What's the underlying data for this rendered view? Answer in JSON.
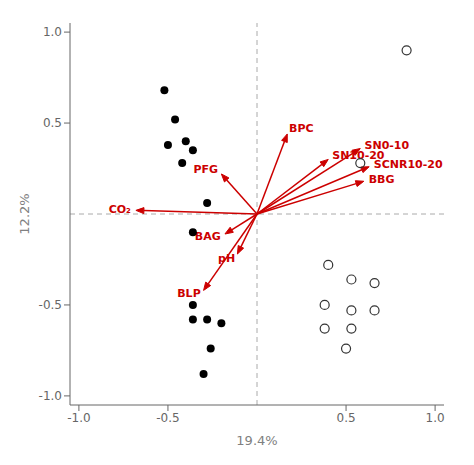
{
  "chart_data": {
    "type": "scatter",
    "xlabel": "19.4%",
    "ylabel": "12.2%",
    "xlim": [
      -1.05,
      1.05
    ],
    "ylim": [
      -1.05,
      1.05
    ],
    "xticks": [
      {
        "value": -1.0,
        "label": "-1.0"
      },
      -0.5,
      0.5,
      {
        "value": 1.0,
        "label": "1.0"
      }
    ],
    "yticks": [
      {
        "value": -1.0,
        "label": "-1.0"
      },
      -0.5,
      0.5,
      {
        "value": 1.0,
        "label": "1.0"
      }
    ],
    "series": [
      {
        "color": "black",
        "marker": "circle",
        "values": [
          [
            -0.52,
            0.68
          ],
          [
            -0.46,
            0.52
          ],
          [
            -0.4,
            0.4
          ],
          [
            -0.5,
            0.38
          ],
          [
            -0.36,
            0.35
          ],
          [
            -0.42,
            0.28
          ],
          [
            -0.28,
            0.06
          ],
          [
            -0.36,
            -0.1
          ],
          [
            -0.36,
            -0.5
          ],
          [
            -0.36,
            -0.58
          ],
          [
            -0.28,
            -0.58
          ],
          [
            -0.2,
            -0.6
          ],
          [
            -0.26,
            -0.74
          ],
          [
            -0.3,
            -0.88
          ]
        ]
      },
      {
        "color": "#333333",
        "marker": "open circle",
        "values": [
          [
            0.84,
            0.9
          ],
          [
            0.58,
            0.28
          ],
          [
            0.4,
            -0.28
          ],
          [
            0.53,
            -0.36
          ],
          [
            0.66,
            -0.38
          ],
          [
            0.38,
            -0.5
          ],
          [
            0.53,
            -0.53
          ],
          [
            0.66,
            -0.53
          ],
          [
            0.38,
            -0.63
          ],
          [
            0.53,
            -0.63
          ],
          [
            0.5,
            -0.74
          ]
        ]
      }
    ],
    "arrows": {
      "color": "#cc0000",
      "items": [
        {
          "label": "BPC",
          "x": 0.17,
          "y": 0.44
        },
        {
          "label": "SN10-20",
          "x": 0.4,
          "y": 0.3
        },
        {
          "label": "SN0-10",
          "x": 0.58,
          "y": 0.36
        },
        {
          "label": "SCNR10-20",
          "x": 0.63,
          "y": 0.26
        },
        {
          "label": "BBG",
          "x": 0.6,
          "y": 0.18
        },
        {
          "label": "PFG",
          "x": -0.2,
          "y": 0.22
        },
        {
          "label": "CO₂",
          "x": -0.68,
          "y": 0.02
        },
        {
          "label": "BAG",
          "x": -0.18,
          "y": -0.11
        },
        {
          "label": "pH",
          "x": -0.11,
          "y": -0.22
        },
        {
          "label": "BLP",
          "x": -0.3,
          "y": -0.42
        }
      ]
    },
    "reference_lines": [
      {
        "axis": "x",
        "value": 0,
        "color": "#aaaaaa",
        "line_style": "dashed"
      },
      {
        "axis": "y",
        "value": 0,
        "color": "#aaaaaa",
        "line_style": "dashed"
      }
    ]
  }
}
